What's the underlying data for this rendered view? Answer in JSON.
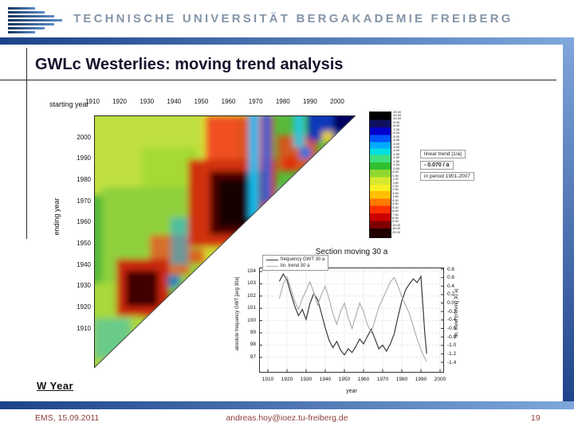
{
  "header": {
    "university_name": "TECHNISCHE UNIVERSITÄT BERGAKADEMIE FREIBERG"
  },
  "slide_title": "GWLc Westerlies: moving trend analysis",
  "w_year_label": "W Year",
  "legend_panel": {
    "line1": "linear trend [1/a]",
    "line2": "- 0.070 / a",
    "line3": "in period 1901-2007"
  },
  "accent_colors": {
    "frame_blue_dark": "#1d4289",
    "frame_blue_light": "#7fa7dc",
    "header_gray_blue": "#8495a8",
    "footer_red": "#8b3d3d",
    "title_dark": "#14142e"
  },
  "chart_data": [
    {
      "type": "heatmap",
      "title": "",
      "xlabel": "starting year",
      "ylabel": "ending year",
      "x_ticks": [
        "1910",
        "1920",
        "1930",
        "1940",
        "1950",
        "1960",
        "1970",
        "1980",
        "1990",
        "2000"
      ],
      "y_ticks": [
        "2000",
        "1990",
        "1980",
        "1970",
        "1960",
        "1950",
        "1940",
        "1930",
        "1920",
        "1910"
      ],
      "shape": "lower-left triangle (ending year > starting year)",
      "colorbar_label": "linear trend [1/a]",
      "annotation": "- 0.070 / a in period 1901-2007",
      "colorbar_tick_labels": [
        "-20.00",
        "-15.00",
        "-10.00",
        "-9.00",
        "-8.00",
        "-7.00",
        "-6.00",
        "-5.00",
        "-4.50",
        "-4.00",
        "-3.50",
        "-3.00",
        "-2.50",
        "-2.00",
        "-1.50",
        "-1.00",
        "-0.50",
        "0.00",
        "0.50",
        "1.00",
        "1.50",
        "2.00",
        "2.50",
        "3.00",
        "3.50",
        "4.00",
        "4.50",
        "5.00",
        "6.00",
        "7.00",
        "8.00",
        "9.00",
        "10.00",
        "15.00",
        "20.00"
      ],
      "colorbar_colors": [
        "#000000",
        "#101060",
        "#0000cc",
        "#0055ff",
        "#00aaff",
        "#00e0e0",
        "#40e080",
        "#30c030",
        "#90d830",
        "#d8e830",
        "#f8f020",
        "#ffc000",
        "#ff7800",
        "#ff3000",
        "#cc0000",
        "#800000",
        "#200000"
      ]
    },
    {
      "type": "line",
      "title": "Section moving 30 a",
      "xlabel": "year",
      "ylabel_left": "absolute frequency GWT [avg 30a]",
      "ylabel_right": "lin. trend (moving 30 a)",
      "x_ticks": [
        1910,
        1920,
        1930,
        1940,
        1950,
        1960,
        1970,
        1980,
        1990,
        2000
      ],
      "xlim": [
        1905,
        2002
      ],
      "ylim_left": [
        96.5,
        104.3
      ],
      "yticks_left": [
        104,
        103,
        102,
        101,
        100,
        99,
        98,
        97
      ],
      "ylim_right": [
        -1.45,
        0.85
      ],
      "yticks_right": [
        0.8,
        0.6,
        0.4,
        0.2,
        0.0,
        -0.2,
        -0.4,
        -0.6,
        -0.8,
        -1.0,
        -1.2,
        -1.4
      ],
      "grid": true,
      "legend_position": "top-left",
      "series": [
        {
          "name": "frequency GWT 30 a",
          "axis": "left",
          "color": "#3a3a3a",
          "x": [
            1916,
            1918,
            1920,
            1922,
            1924,
            1926,
            1928,
            1930,
            1932,
            1934,
            1936,
            1938,
            1940,
            1942,
            1944,
            1946,
            1948,
            1950,
            1952,
            1954,
            1956,
            1958,
            1960,
            1962,
            1964,
            1966,
            1968,
            1970,
            1972,
            1974,
            1976,
            1978,
            1980,
            1982,
            1984,
            1986,
            1988,
            1990,
            1992,
            1993
          ],
          "values": [
            103.2,
            103.8,
            103.3,
            102.2,
            101.2,
            100.4,
            100.9,
            100.1,
            101.4,
            102.2,
            101.7,
            100.6,
            99.4,
            98.4,
            97.8,
            98.3,
            97.6,
            97.2,
            97.7,
            97.4,
            97.9,
            98.5,
            98.1,
            98.7,
            99.3,
            98.5,
            97.7,
            98.0,
            97.5,
            98.1,
            98.9,
            100.3,
            101.6,
            102.5,
            103.0,
            103.4,
            103.1,
            103.6,
            99.0,
            97.3
          ]
        },
        {
          "name": "lin. trend 30 a",
          "axis": "right",
          "color": "#b0b0b0",
          "x": [
            1916,
            1918,
            1920,
            1922,
            1924,
            1926,
            1928,
            1930,
            1932,
            1934,
            1936,
            1938,
            1940,
            1942,
            1944,
            1946,
            1948,
            1950,
            1952,
            1954,
            1956,
            1958,
            1960,
            1962,
            1964,
            1966,
            1968,
            1970,
            1972,
            1974,
            1976,
            1978,
            1980,
            1982,
            1984,
            1986,
            1988,
            1990,
            1992,
            1993
          ],
          "values": [
            0.1,
            0.45,
            0.62,
            0.35,
            0.05,
            -0.15,
            0.1,
            0.3,
            0.5,
            0.25,
            -0.05,
            0.2,
            0.4,
            0.1,
            -0.25,
            -0.5,
            -0.2,
            0.0,
            -0.35,
            -0.6,
            -0.3,
            0.0,
            -0.2,
            -0.5,
            -0.7,
            -0.4,
            -0.1,
            0.1,
            0.3,
            0.5,
            0.6,
            0.4,
            0.15,
            -0.05,
            -0.25,
            -0.55,
            -0.85,
            -1.1,
            -1.3,
            -1.38
          ]
        }
      ]
    }
  ],
  "footer": {
    "date": "EMS, 15.09.2011",
    "email": "andreas.hoy@ioez.tu-freiberg.de",
    "page": "19"
  }
}
